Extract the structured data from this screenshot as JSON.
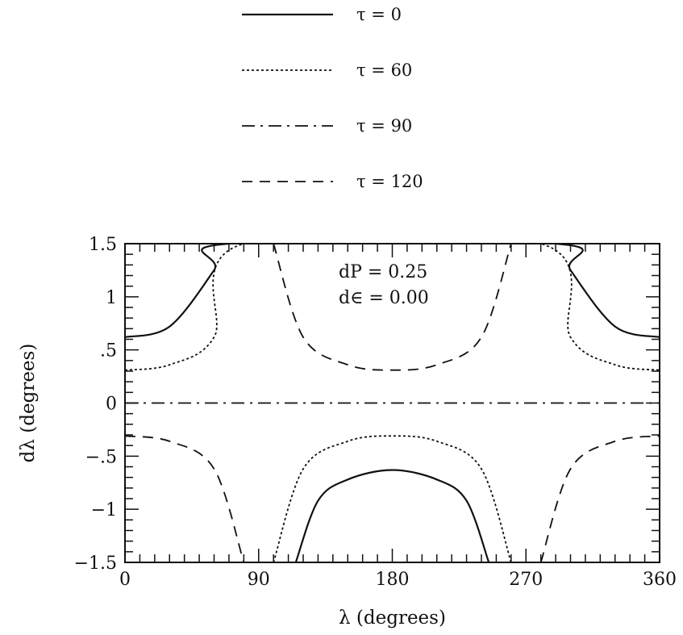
{
  "chart_data": {
    "type": "line",
    "xlabel": "λ (degrees)",
    "ylabel": "dλ (degrees)",
    "xlim": [
      0,
      360
    ],
    "ylim": [
      -1.5,
      1.5
    ],
    "x_ticks": [
      {
        "value": 0,
        "label": "0"
      },
      {
        "value": 90,
        "label": "90"
      },
      {
        "value": 180,
        "label": "180"
      },
      {
        "value": 270,
        "label": "270"
      },
      {
        "value": 360,
        "label": "360"
      }
    ],
    "y_ticks": [
      {
        "value": 1.5,
        "label": "1.5"
      },
      {
        "value": 1,
        "label": "1"
      },
      {
        "value": 0.5,
        "label": ".5"
      },
      {
        "value": 0,
        "label": "0"
      },
      {
        "value": -0.5,
        "label": "-.5"
      },
      {
        "value": -1,
        "label": "-1"
      },
      {
        "value": -1.5,
        "label": "-1.5"
      }
    ],
    "annotations": [
      "dP  =  0.25",
      "d∈  =  0.00"
    ],
    "legend_position": "top-center",
    "series": [
      {
        "name": "τ = 0",
        "tau": 0,
        "dash": "solid",
        "x": [
          0,
          30,
          60,
          70,
          290,
          300,
          330,
          360
        ],
        "y": [
          0.62,
          0.72,
          1.25,
          1.5,
          1.5,
          1.25,
          0.72,
          0.62
        ]
      },
      {
        "name": "τ = 0",
        "tau": 0,
        "dash": "solid",
        "x": [
          115,
          130,
          150,
          180,
          210,
          230,
          245
        ],
        "y": [
          -1.5,
          -0.92,
          -0.72,
          -0.63,
          -0.72,
          -0.92,
          -1.5
        ]
      },
      {
        "name": "τ = 60",
        "tau": 60,
        "dash": "dotted",
        "x": [
          0,
          30,
          60,
          80,
          280,
          300,
          330,
          360
        ],
        "y": [
          0.31,
          0.36,
          0.62,
          1.5,
          1.5,
          0.62,
          0.36,
          0.31
        ]
      },
      {
        "name": "τ = 60",
        "tau": 60,
        "dash": "dotted",
        "x": [
          100,
          120,
          150,
          180,
          210,
          240,
          260
        ],
        "y": [
          -1.5,
          -0.62,
          -0.36,
          -0.31,
          -0.36,
          -0.62,
          -1.5
        ]
      },
      {
        "name": "τ = 90",
        "tau": 90,
        "dash": "dashdot",
        "x": [
          0,
          360
        ],
        "y": [
          0,
          0
        ]
      },
      {
        "name": "τ = 120",
        "tau": 120,
        "dash": "dashed",
        "x": [
          100,
          120,
          150,
          180,
          210,
          240,
          260
        ],
        "y": [
          1.5,
          0.62,
          0.36,
          0.31,
          0.36,
          0.62,
          1.5
        ]
      },
      {
        "name": "τ = 120",
        "tau": 120,
        "dash": "dashed",
        "x": [
          0,
          30,
          60,
          80
        ],
        "y": [
          -0.31,
          -0.36,
          -0.62,
          -1.5
        ]
      },
      {
        "name": "τ = 120",
        "tau": 120,
        "dash": "dashed",
        "x": [
          280,
          300,
          330,
          360
        ],
        "y": [
          -1.5,
          -0.62,
          -0.36,
          -0.31
        ]
      }
    ],
    "legend": [
      {
        "label": "τ  =  0",
        "dash": "solid"
      },
      {
        "label": "τ  =  60",
        "dash": "dotted"
      },
      {
        "label": "τ  =  90",
        "dash": "dashdot"
      },
      {
        "label": "τ  =  120",
        "dash": "dashed"
      }
    ]
  }
}
